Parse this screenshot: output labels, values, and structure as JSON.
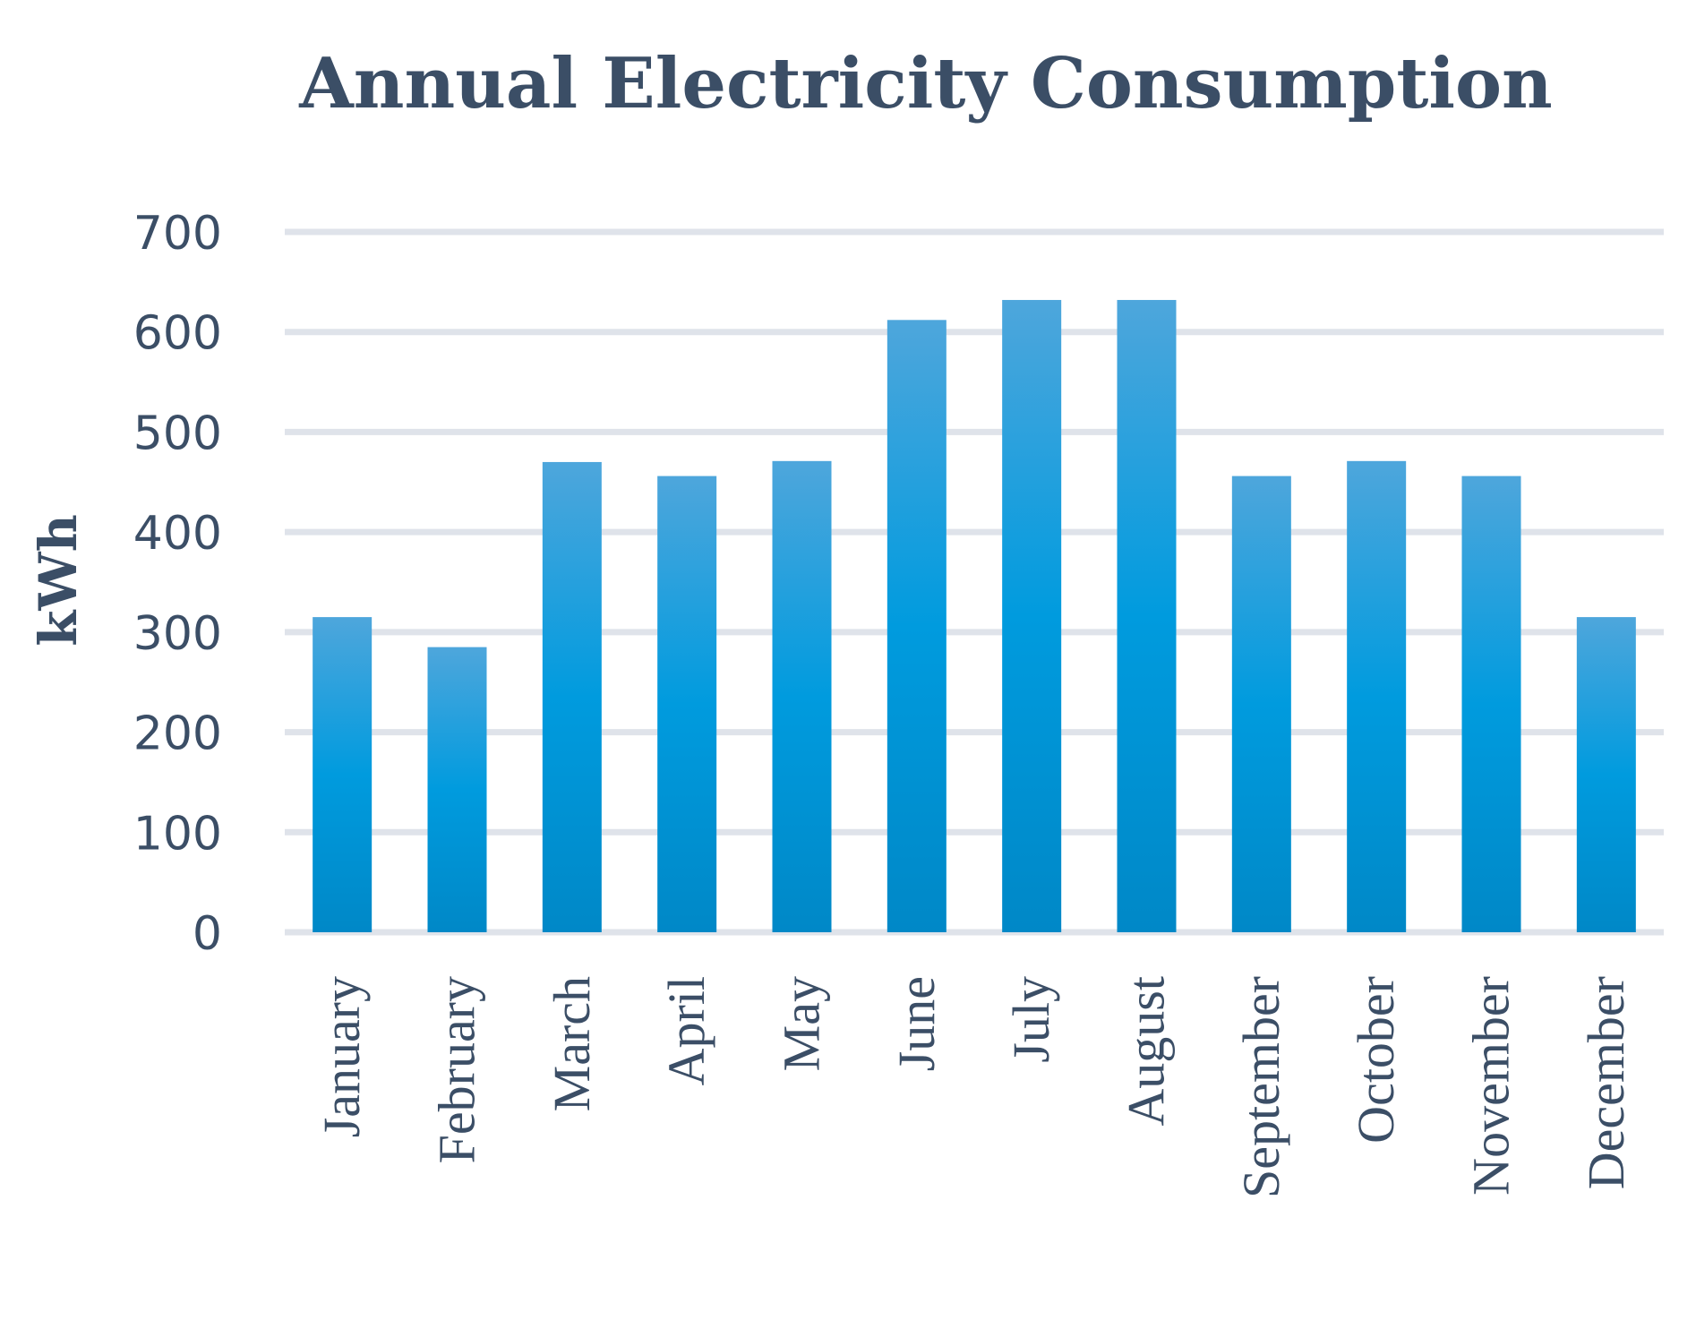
{
  "chart_data": {
    "type": "bar",
    "title": "Annual Electricity Consumption",
    "xlabel": "",
    "ylabel": "kWh",
    "categories": [
      "January",
      "February",
      "March",
      "April",
      "May",
      "June",
      "July",
      "August",
      "September",
      "October",
      "November",
      "December"
    ],
    "series": [
      {
        "name": "kWh",
        "values": [
          315,
          285,
          470,
          456,
          471,
          612,
          632,
          632,
          456,
          471,
          456,
          315
        ]
      }
    ],
    "ylim": [
      0,
      700
    ],
    "yticks": [
      "0",
      "100",
      "200",
      "300",
      "400",
      "500",
      "600",
      "700"
    ],
    "grid": true,
    "legend": "none",
    "colors": {
      "bar_top": "#4ea6dc",
      "bar_middle": "#009bde",
      "bar_bottom": "#0088c7",
      "text": "#3b4e66",
      "grid": "#dfe3ea"
    }
  }
}
